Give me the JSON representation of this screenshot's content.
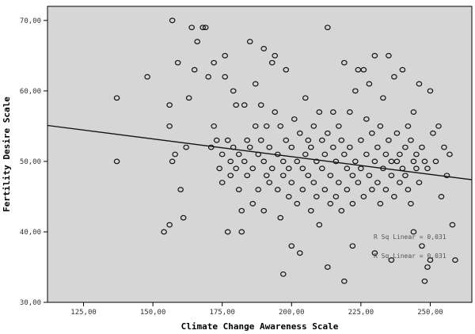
{
  "chart_data": {
    "type": "scatter",
    "title": "",
    "xlabel": "Climate Change Awareness Scale",
    "ylabel": "Fertility Desire Scale",
    "xlim": [
      112,
      265
    ],
    "ylim": [
      30,
      72
    ],
    "x_ticks": [
      125,
      150,
      175,
      200,
      225,
      250
    ],
    "x_tick_labels": [
      "125,00",
      "150,00",
      "175,00",
      "200,00",
      "225,00",
      "250,00"
    ],
    "y_ticks": [
      30,
      40,
      50,
      60,
      70
    ],
    "y_tick_labels": [
      "30,00",
      "40,00",
      "50,00",
      "60,00",
      "70,00"
    ],
    "grid": false,
    "fit_line": {
      "x": [
        112,
        265
      ],
      "y": [
        55.1,
        47.4
      ]
    },
    "fit_labels": [
      "R Sq Linear = 0,031",
      "R Sq Linear = 0,031"
    ],
    "colors": {
      "plot_bg": "#d6d6d6",
      "marker": "#111111",
      "line": "#111111"
    },
    "points": [
      [
        137,
        59
      ],
      [
        137,
        50
      ],
      [
        148,
        62
      ],
      [
        154,
        40
      ],
      [
        156,
        41
      ],
      [
        156,
        55
      ],
      [
        156,
        58
      ],
      [
        157,
        70
      ],
      [
        157,
        50
      ],
      [
        158,
        51
      ],
      [
        159,
        64
      ],
      [
        160,
        46
      ],
      [
        161,
        42
      ],
      [
        162,
        52
      ],
      [
        163,
        59
      ],
      [
        164,
        69
      ],
      [
        165,
        63
      ],
      [
        166,
        67
      ],
      [
        168,
        69
      ],
      [
        169,
        69
      ],
      [
        170,
        62
      ],
      [
        171,
        52
      ],
      [
        172,
        55
      ],
      [
        172,
        64
      ],
      [
        173,
        53
      ],
      [
        174,
        49
      ],
      [
        175,
        51
      ],
      [
        175,
        47
      ],
      [
        176,
        65
      ],
      [
        176,
        62
      ],
      [
        177,
        53
      ],
      [
        177,
        40
      ],
      [
        178,
        50
      ],
      [
        178,
        48
      ],
      [
        179,
        60
      ],
      [
        179,
        52
      ],
      [
        180,
        58
      ],
      [
        180,
        49
      ],
      [
        181,
        51
      ],
      [
        181,
        46
      ],
      [
        182,
        43
      ],
      [
        182,
        40
      ],
      [
        183,
        58
      ],
      [
        183,
        50
      ],
      [
        184,
        53
      ],
      [
        184,
        48
      ],
      [
        185,
        67
      ],
      [
        185,
        52
      ],
      [
        186,
        49
      ],
      [
        186,
        44
      ],
      [
        187,
        61
      ],
      [
        187,
        55
      ],
      [
        188,
        51
      ],
      [
        188,
        46
      ],
      [
        189,
        58
      ],
      [
        189,
        53
      ],
      [
        190,
        66
      ],
      [
        190,
        50
      ],
      [
        190,
        43
      ],
      [
        191,
        48
      ],
      [
        191,
        55
      ],
      [
        192,
        52
      ],
      [
        192,
        47
      ],
      [
        193,
        64
      ],
      [
        193,
        49
      ],
      [
        194,
        65
      ],
      [
        194,
        57
      ],
      [
        195,
        51
      ],
      [
        195,
        46
      ],
      [
        196,
        55
      ],
      [
        196,
        42
      ],
      [
        197,
        50
      ],
      [
        197,
        48
      ],
      [
        198,
        63
      ],
      [
        198,
        53
      ],
      [
        199,
        49
      ],
      [
        199,
        45
      ],
      [
        200,
        52
      ],
      [
        200,
        38
      ],
      [
        200,
        47
      ],
      [
        201,
        56
      ],
      [
        202,
        50
      ],
      [
        202,
        44
      ],
      [
        203,
        54
      ],
      [
        203,
        37
      ],
      [
        204,
        49
      ],
      [
        204,
        46
      ],
      [
        205,
        51
      ],
      [
        205,
        59
      ],
      [
        206,
        53
      ],
      [
        206,
        48
      ],
      [
        207,
        52
      ],
      [
        207,
        43
      ],
      [
        208,
        55
      ],
      [
        208,
        47
      ],
      [
        209,
        50
      ],
      [
        209,
        45
      ],
      [
        210,
        57
      ],
      [
        210,
        41
      ],
      [
        211,
        53
      ],
      [
        211,
        49
      ],
      [
        212,
        51
      ],
      [
        212,
        46
      ],
      [
        213,
        69
      ],
      [
        213,
        54
      ],
      [
        214,
        48
      ],
      [
        214,
        44
      ],
      [
        215,
        52
      ],
      [
        215,
        57
      ],
      [
        216,
        50
      ],
      [
        216,
        45
      ],
      [
        217,
        55
      ],
      [
        217,
        47
      ],
      [
        218,
        53
      ],
      [
        218,
        43
      ],
      [
        219,
        64
      ],
      [
        219,
        51
      ],
      [
        220,
        49
      ],
      [
        220,
        46
      ],
      [
        221,
        57
      ],
      [
        221,
        52
      ],
      [
        222,
        48
      ],
      [
        222,
        44
      ],
      [
        223,
        60
      ],
      [
        223,
        50
      ],
      [
        224,
        63
      ],
      [
        224,
        47
      ],
      [
        225,
        53
      ],
      [
        225,
        49
      ],
      [
        226,
        63
      ],
      [
        226,
        45
      ],
      [
        227,
        51
      ],
      [
        227,
        56
      ],
      [
        228,
        48
      ],
      [
        228,
        61
      ],
      [
        229,
        54
      ],
      [
        229,
        46
      ],
      [
        230,
        65
      ],
      [
        230,
        50
      ],
      [
        231,
        52
      ],
      [
        231,
        47
      ],
      [
        232,
        55
      ],
      [
        232,
        44
      ],
      [
        233,
        59
      ],
      [
        233,
        49
      ],
      [
        234,
        51
      ],
      [
        234,
        46
      ],
      [
        235,
        65
      ],
      [
        235,
        53
      ],
      [
        236,
        50
      ],
      [
        236,
        48
      ],
      [
        237,
        62
      ],
      [
        237,
        45
      ],
      [
        238,
        54
      ],
      [
        238,
        50
      ],
      [
        239,
        51
      ],
      [
        239,
        47
      ],
      [
        240,
        49
      ],
      [
        240,
        63
      ],
      [
        241,
        52
      ],
      [
        241,
        48
      ],
      [
        242,
        55
      ],
      [
        242,
        46
      ],
      [
        243,
        53
      ],
      [
        243,
        44
      ],
      [
        244,
        57
      ],
      [
        244,
        50
      ],
      [
        245,
        49
      ],
      [
        245,
        51
      ],
      [
        246,
        61
      ],
      [
        246,
        47
      ],
      [
        247,
        52
      ],
      [
        247,
        38
      ],
      [
        248,
        50
      ],
      [
        248,
        33
      ],
      [
        249,
        49
      ],
      [
        249,
        35
      ],
      [
        250,
        60
      ],
      [
        251,
        54
      ],
      [
        252,
        50
      ],
      [
        253,
        55
      ],
      [
        254,
        45
      ],
      [
        255,
        52
      ],
      [
        256,
        48
      ],
      [
        257,
        51
      ],
      [
        258,
        41
      ],
      [
        259,
        36
      ],
      [
        219,
        33
      ],
      [
        213,
        35
      ],
      [
        197,
        34
      ],
      [
        222,
        38
      ],
      [
        230,
        37
      ],
      [
        236,
        36
      ],
      [
        244,
        40
      ],
      [
        250,
        36
      ]
    ]
  }
}
